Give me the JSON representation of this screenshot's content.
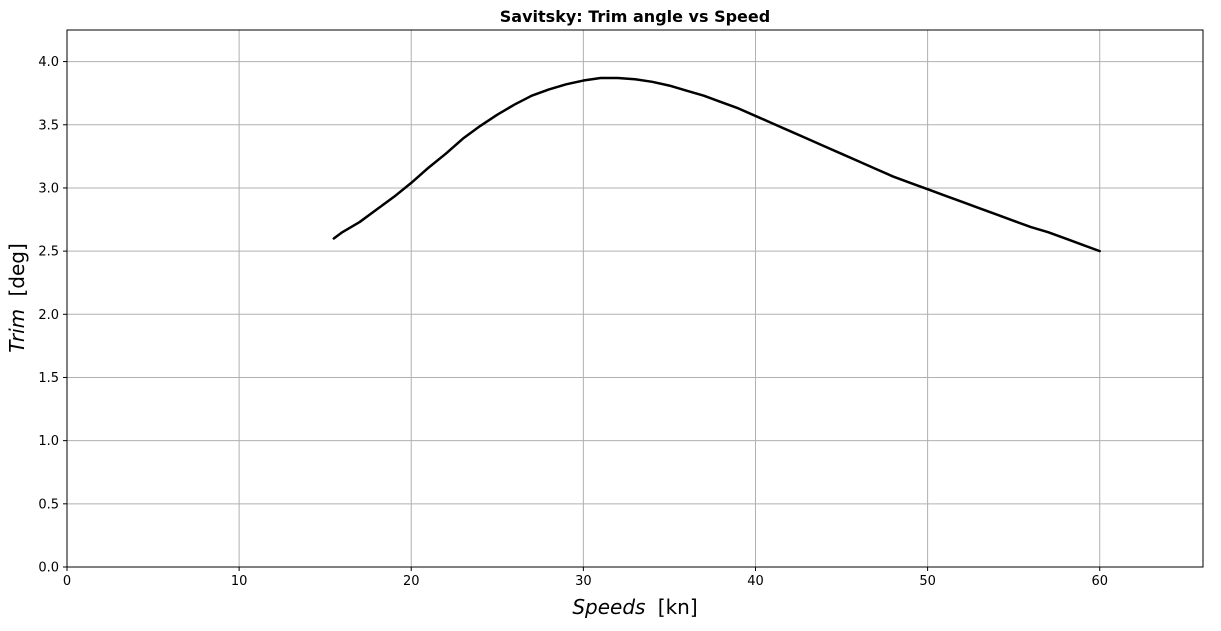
{
  "chart_data": {
    "type": "line",
    "title": "Savitsky: Trim angle vs Speed",
    "xlabel": {
      "italic": "Speeds",
      "unit": "[kn]"
    },
    "ylabel": {
      "italic": "Trim",
      "unit": "[deg]"
    },
    "xlim": [
      0,
      66
    ],
    "ylim": [
      0,
      4.25
    ],
    "xticks": [
      0,
      10,
      20,
      30,
      40,
      50,
      60
    ],
    "xtick_labels": [
      "0",
      "10",
      "20",
      "30",
      "40",
      "50",
      "60"
    ],
    "yticks": [
      0,
      0.5,
      1.0,
      1.5,
      2.0,
      2.5,
      3.0,
      3.5,
      4.0
    ],
    "ytick_labels": [
      "0.0",
      "0.5",
      "1.0",
      "1.5",
      "2.0",
      "2.5",
      "3.0",
      "3.5",
      "4.0"
    ],
    "grid": true,
    "series": [
      {
        "color": "#000000",
        "x": [
          15.5,
          16.0,
          17.0,
          18.0,
          19.0,
          20.0,
          21.0,
          22.0,
          23.0,
          24.0,
          25.0,
          26.0,
          27.0,
          28.0,
          29.0,
          30.0,
          31.0,
          32.0,
          33.0,
          34.0,
          35.0,
          36.0,
          37.0,
          38.0,
          39.0,
          40.0,
          41.0,
          42.0,
          43.0,
          44.0,
          45.0,
          46.0,
          47.0,
          48.0,
          49.0,
          50.0,
          51.0,
          52.0,
          53.0,
          54.0,
          55.0,
          56.0,
          57.0,
          58.0,
          59.0,
          60.0
        ],
        "y": [
          2.6,
          2.65,
          2.73,
          2.83,
          2.93,
          3.04,
          3.16,
          3.27,
          3.39,
          3.49,
          3.58,
          3.66,
          3.73,
          3.78,
          3.82,
          3.85,
          3.87,
          3.87,
          3.86,
          3.84,
          3.81,
          3.77,
          3.73,
          3.68,
          3.63,
          3.57,
          3.51,
          3.45,
          3.39,
          3.33,
          3.27,
          3.21,
          3.15,
          3.09,
          3.04,
          2.99,
          2.94,
          2.89,
          2.84,
          2.79,
          2.74,
          2.69,
          2.65,
          2.6,
          2.55,
          2.5
        ]
      }
    ]
  }
}
